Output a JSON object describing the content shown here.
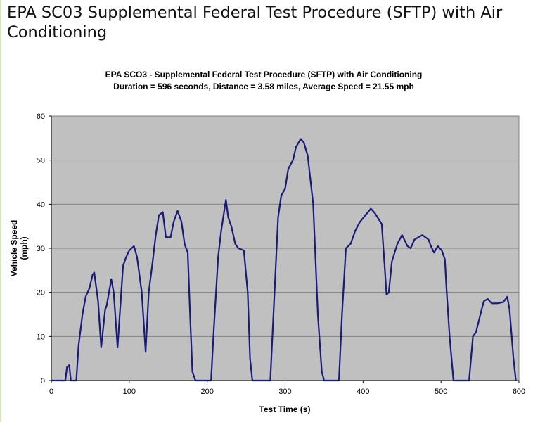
{
  "page": {
    "title": "EPA SC03 Supplemental Federal Test Procedure (SFTP) with Air Conditioning"
  },
  "chart_data": {
    "type": "line",
    "title": "EPA SCO3 - Supplemental Federal Test Procedure (SFTP) with Air Conditioning",
    "subtitle": "Duration = 596 seconds, Distance = 3.58 miles, Average Speed = 21.55 mph",
    "xlabel": "Test Time (s)",
    "ylabel": "Vehicle Speed (mph)",
    "xlim": [
      0,
      600
    ],
    "ylim": [
      0,
      60
    ],
    "xticks": [
      0,
      100,
      200,
      300,
      400,
      500,
      600
    ],
    "yticks": [
      0,
      10,
      20,
      30,
      40,
      50,
      60
    ],
    "grid": true,
    "colors": {
      "line": "#1a1a7a",
      "plot_bg": "#c0c0c0",
      "grid": "#808080"
    },
    "series": [
      {
        "name": "Vehicle Speed",
        "x": [
          0,
          18,
          20,
          23,
          25,
          32,
          35,
          40,
          44,
          49,
          53,
          55,
          60,
          64,
          69,
          71,
          77,
          80,
          85,
          89,
          92,
          96,
          100,
          106,
          110,
          116,
          121,
          125,
          130,
          134,
          138,
          143,
          147,
          153,
          157,
          162,
          167,
          171,
          175,
          178,
          181,
          185,
          205,
          208,
          214,
          218,
          224,
          227,
          231,
          236,
          240,
          247,
          252,
          255,
          258,
          281,
          285,
          291,
          295,
          300,
          304,
          310,
          314,
          320,
          324,
          329,
          336,
          342,
          347,
          350,
          369,
          373,
          378,
          384,
          390,
          396,
          403,
          410,
          415,
          424,
          428,
          430,
          433,
          437,
          444,
          450,
          457,
          461,
          466,
          476,
          484,
          487,
          491,
          496,
          501,
          505,
          507,
          511,
          516,
          536,
          541,
          545,
          552,
          555,
          560,
          565,
          572,
          580,
          585,
          588,
          593,
          596
        ],
        "y": [
          0,
          0,
          3,
          3.5,
          0,
          0,
          8,
          15,
          19,
          21,
          24,
          24.5,
          18,
          7.5,
          16,
          17,
          23,
          20,
          7.5,
          18,
          26,
          28,
          29.5,
          30.5,
          28,
          20,
          6.5,
          20,
          27,
          33,
          37.5,
          38.2,
          32.5,
          32.5,
          36,
          38.5,
          36,
          31,
          29,
          15,
          2,
          0,
          0,
          10,
          28,
          34,
          41,
          37,
          35,
          31,
          30,
          29.5,
          20,
          5,
          0,
          0,
          15,
          37,
          42,
          43.5,
          48,
          50,
          53,
          54.8,
          54,
          51,
          40,
          15,
          2,
          0,
          0,
          15,
          30,
          31,
          34,
          36,
          37.5,
          39,
          38,
          35.5,
          25,
          19.5,
          20,
          27,
          31,
          33,
          30.5,
          30,
          32,
          33,
          32,
          30.5,
          29,
          30.5,
          29.5,
          27.5,
          21,
          10,
          0,
          0,
          10,
          11,
          16,
          18,
          18.5,
          17.5,
          17.5,
          17.8,
          19,
          16,
          5,
          0
        ]
      }
    ]
  }
}
